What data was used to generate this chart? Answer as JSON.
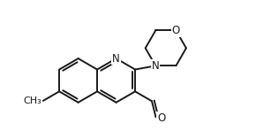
{
  "bg_color": "#ffffff",
  "line_color": "#1a1a1a",
  "lw": 1.4,
  "fs": 8.5,
  "figsize": [
    2.9,
    1.48
  ],
  "dpi": 100,
  "xlim": [
    -0.5,
    3.2
  ],
  "ylim": [
    -1.1,
    1.5
  ]
}
